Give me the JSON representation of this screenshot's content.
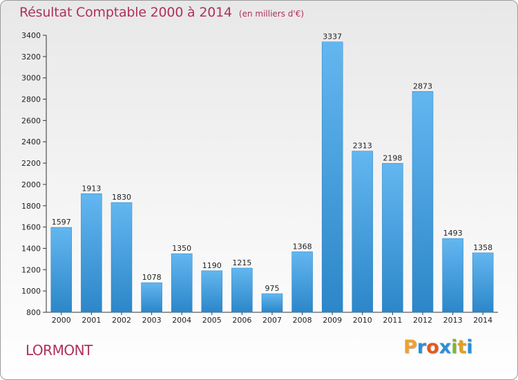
{
  "title": "Résultat Comptable 2000 à 2014",
  "unit": "(en milliers d'€)",
  "place": "LORMONT",
  "logo": {
    "letters": [
      "P",
      "r",
      "o",
      "x",
      "i",
      "t",
      "i"
    ],
    "colors": [
      "#f0a030",
      "#2a8fd6",
      "#e05a1e",
      "#2a8fd6",
      "#7cb82f",
      "#e0a020",
      "#2a8fd6"
    ]
  },
  "colors": {
    "bar_light": "#63b7f0",
    "bar_dark": "#2c86c8",
    "title": "#b0305c"
  },
  "chart_data": {
    "type": "bar",
    "title": "Résultat Comptable 2000 à 2014",
    "xlabel": "",
    "ylabel": "",
    "categories": [
      "2000",
      "2001",
      "2002",
      "2003",
      "2004",
      "2005",
      "2006",
      "2007",
      "2008",
      "2009",
      "2010",
      "2011",
      "2012",
      "2013",
      "2014"
    ],
    "values": [
      1597,
      1913,
      1830,
      1078,
      1350,
      1190,
      1215,
      975,
      1368,
      3337,
      2313,
      2198,
      2873,
      1493,
      1358
    ],
    "ylim": [
      800,
      3400
    ],
    "yticks": [
      800,
      1000,
      1200,
      1400,
      1600,
      1800,
      2000,
      2200,
      2400,
      2600,
      2800,
      3000,
      3200,
      3400
    ],
    "grid": false,
    "legend": "none"
  }
}
